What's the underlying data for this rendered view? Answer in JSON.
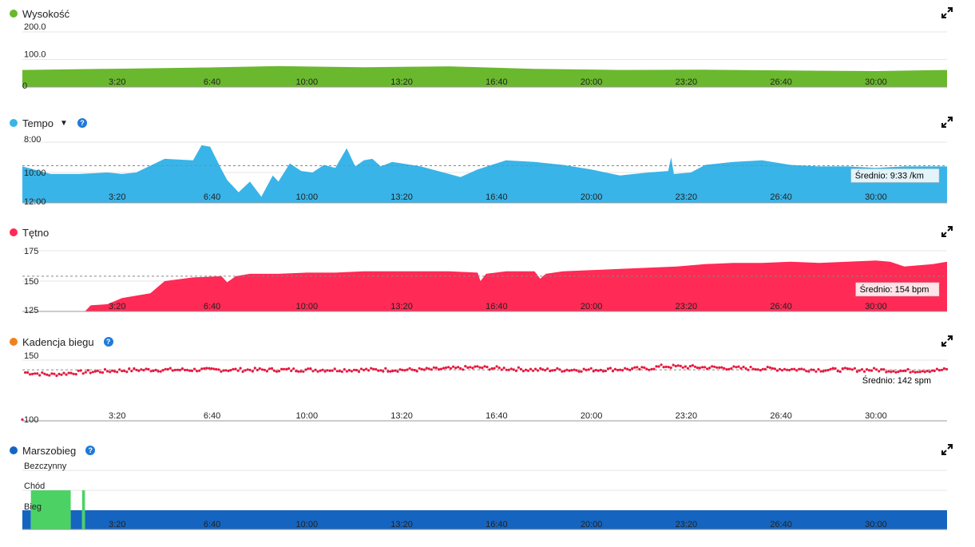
{
  "expand_icon": "expand-icon",
  "help_icon": "help-icon",
  "x_ticks": [
    "3:20",
    "6:40",
    "10:00",
    "13:20",
    "16:40",
    "20:00",
    "23:20",
    "26:40",
    "30:00"
  ],
  "chart_data": [
    {
      "type": "area",
      "title": "Wysokość",
      "color": "#6ab82e",
      "y_ticks": [
        "200.0",
        "100.0",
        "0"
      ],
      "ylim": [
        0,
        200
      ],
      "x_minutes": [
        0,
        3,
        6,
        9,
        12,
        15,
        18,
        21,
        24,
        27,
        30,
        32.5
      ],
      "values": [
        62,
        66,
        70,
        76,
        72,
        75,
        66,
        62,
        63,
        60,
        58,
        62
      ]
    },
    {
      "type": "area",
      "title": "Tempo",
      "color": "#39b4e8",
      "y_ticks": [
        "8:00",
        "10:00",
        "12:00"
      ],
      "ylim_min_per_km": [
        8,
        12
      ],
      "inverted": true,
      "average_label": "Średnio: 9:33 /km",
      "average_value": 9.55,
      "x_minutes": [
        0,
        1,
        2,
        3,
        3.5,
        4,
        5,
        6,
        6.3,
        6.6,
        7,
        7.2,
        7.6,
        8,
        8.4,
        8.8,
        9,
        9.4,
        9.8,
        10.2,
        10.6,
        11,
        11.4,
        11.7,
        12,
        12.3,
        12.6,
        13,
        14,
        15,
        15.4,
        16,
        17,
        18,
        19,
        20,
        21,
        22,
        22.7,
        22.8,
        22.9,
        23.5,
        24,
        25,
        26,
        27,
        28,
        29,
        30,
        31,
        32.5
      ],
      "values": [
        9.6,
        10.1,
        10.1,
        10.0,
        10.1,
        10.0,
        9.1,
        9.2,
        8.2,
        8.3,
        9.8,
        10.5,
        11.3,
        10.6,
        11.6,
        10.2,
        10.6,
        9.4,
        9.9,
        10.0,
        9.5,
        9.7,
        8.4,
        9.6,
        9.2,
        9.1,
        9.6,
        9.3,
        9.6,
        10.1,
        10.3,
        9.8,
        9.2,
        9.3,
        9.5,
        9.8,
        10.2,
        10.0,
        9.9,
        9.0,
        10.1,
        10.0,
        9.5,
        9.3,
        9.2,
        9.5,
        9.6,
        9.6,
        9.7,
        9.6,
        9.6
      ]
    },
    {
      "type": "area",
      "title": "Tętno",
      "color": "#ff2a55",
      "y_ticks": [
        "175",
        "150",
        "125"
      ],
      "ylim": [
        125,
        175
      ],
      "average_label": "Średnio: 154 bpm",
      "average_value": 154,
      "x_minutes": [
        0,
        2.2,
        2.4,
        3,
        3.5,
        4,
        4.5,
        5,
        6,
        7,
        7.2,
        7.5,
        8,
        9,
        10,
        11,
        12,
        13,
        14,
        15,
        16,
        16.1,
        16.3,
        17,
        18,
        18.2,
        18.4,
        19,
        20,
        21,
        22,
        23,
        24,
        25,
        26,
        27,
        28,
        29,
        30,
        30.5,
        31,
        32,
        32.5
      ],
      "values": [
        125,
        125,
        130,
        131,
        136,
        138,
        140,
        150,
        153,
        154,
        149,
        154,
        156,
        156,
        157,
        157,
        158,
        158,
        158,
        158,
        157,
        150,
        156,
        158,
        158,
        152,
        156,
        158,
        159,
        160,
        161,
        162,
        164,
        165,
        165,
        166,
        165,
        166,
        167,
        166,
        162,
        164,
        166
      ]
    },
    {
      "type": "scatter",
      "title": "Kadencja biegu",
      "color": "#e8183f",
      "y_ticks": [
        "150",
        "100"
      ],
      "ylim": [
        100,
        150
      ],
      "average_label": "Średnio: 142 spm",
      "average_value": 142,
      "trend_minutes": [
        0,
        1,
        2,
        3,
        4,
        6,
        8,
        10,
        12,
        14,
        16,
        18,
        20,
        22,
        22.5,
        24,
        26,
        28,
        30,
        31,
        32.5
      ],
      "trend_values": [
        140,
        138,
        140,
        141,
        142,
        142,
        142,
        142,
        142,
        142,
        144,
        142,
        142,
        143,
        145,
        144,
        143,
        142,
        142,
        141,
        142
      ],
      "outlier_minute": 0,
      "outlier_value": 101
    },
    {
      "type": "step",
      "title": "Marszobieg",
      "categories": [
        "Bezczynny",
        "Chód",
        "Bieg"
      ],
      "run_color": "#1565c0",
      "walk_color": "#4cd264",
      "segments": [
        {
          "state": "Bieg",
          "start": 0,
          "end": 0.3
        },
        {
          "state": "Chód",
          "start": 0.3,
          "end": 1.7
        },
        {
          "state": "Bieg",
          "start": 1.7,
          "end": 2.1
        },
        {
          "state": "Chód",
          "start": 2.1,
          "end": 2.2
        },
        {
          "state": "Bieg",
          "start": 2.2,
          "end": 32.5
        }
      ]
    }
  ]
}
